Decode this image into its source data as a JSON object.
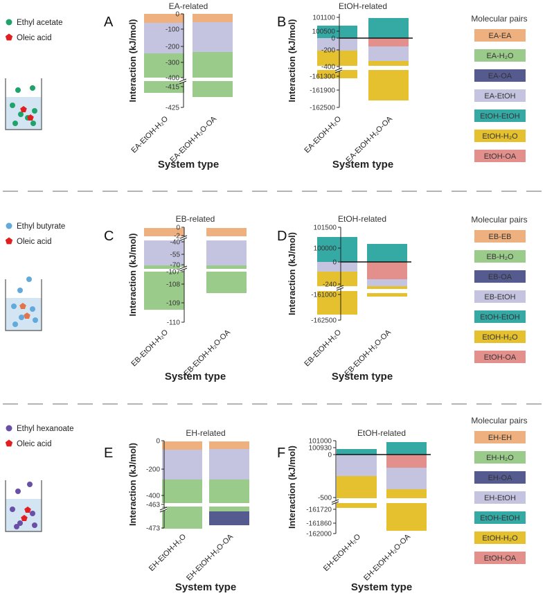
{
  "colors": {
    "EE": "#eeb07e",
    "EW": "#9bcb8b",
    "EO": "#555b8f",
    "EEt": "#c4c4e0",
    "EtEt": "#35aaa5",
    "EtW": "#e6c12f",
    "EtO": "#e38f8c"
  },
  "rows": [
    {
      "legend": [
        {
          "label": "Ethyl acetate",
          "shape": "circle",
          "color": "#1fa36b"
        },
        {
          "label": "Oleic acid",
          "shape": "pentagon",
          "color": "#e02020"
        }
      ],
      "beaker_particle_color": "#1fa36b",
      "pairs_title": "Molecular pairs",
      "pairs": [
        {
          "label": "EA-EA",
          "key": "EE"
        },
        {
          "label": "EA-H₂O",
          "key": "EW"
        },
        {
          "label": "EA-OA",
          "key": "EO"
        },
        {
          "label": "EA-EtOH",
          "key": "EEt"
        },
        {
          "label": "EtOH-EtOH",
          "key": "EtEt"
        },
        {
          "label": "EtOH-H₂O",
          "key": "EtW"
        },
        {
          "label": "EtOH-OA",
          "key": "EtO"
        }
      ]
    },
    {
      "legend": [
        {
          "label": "Ethyl butyrate",
          "shape": "circle",
          "color": "#62a9dc"
        },
        {
          "label": "Oleic acid",
          "shape": "pentagon",
          "color": "#e02020"
        }
      ],
      "beaker_particle_color": "#62a9dc",
      "pairs_title": "Molecular pairs",
      "pairs": [
        {
          "label": "EB-EB",
          "key": "EE"
        },
        {
          "label": "EB-H₂O",
          "key": "EW"
        },
        {
          "label": "EB-OA",
          "key": "EO"
        },
        {
          "label": "EB-EtOH",
          "key": "EEt"
        },
        {
          "label": "EtOH-EtOH",
          "key": "EtEt"
        },
        {
          "label": "EtOH-H₂O",
          "key": "EtW"
        },
        {
          "label": "EtOH-OA",
          "key": "EtO"
        }
      ]
    },
    {
      "legend": [
        {
          "label": "Ethyl hexanoate",
          "shape": "circle",
          "color": "#6a4fa8"
        },
        {
          "label": "Oleic acid",
          "shape": "pentagon",
          "color": "#e02020"
        }
      ],
      "beaker_particle_color": "#6a4fa8",
      "pairs_title": "Molecular pairs",
      "pairs": [
        {
          "label": "EH-EH",
          "key": "EE"
        },
        {
          "label": "EH-H₂O",
          "key": "EW"
        },
        {
          "label": "EH-OA",
          "key": "EO"
        },
        {
          "label": "EH-EtOH",
          "key": "EEt"
        },
        {
          "label": "EtOH-EtOH",
          "key": "EtEt"
        },
        {
          "label": "EtOH-H₂O",
          "key": "EtW"
        },
        {
          "label": "EtOH-OA",
          "key": "EtO"
        }
      ]
    }
  ],
  "chart_data": [
    {
      "panel": "A",
      "type": "bar",
      "stacked": true,
      "title": "EA-related",
      "ylabel": "Interaction (kJ/mol)",
      "xlabel": "System type",
      "categories": [
        "EA-EtOH-H₂O",
        "EA-EtOH-H₂O-OA"
      ],
      "axis_breaks": true,
      "y_ticks": [
        "0",
        "-100",
        "-200",
        "-300",
        "-400",
        "-415",
        "-425"
      ],
      "stacks": [
        [
          {
            "key": "EE",
            "from": 0,
            "to": -30
          },
          {
            "key": "EEt",
            "from": -30,
            "to": -250
          },
          {
            "key": "EW",
            "from": -250,
            "to": -418
          }
        ],
        [
          {
            "key": "EE",
            "from": 0,
            "to": -30
          },
          {
            "key": "EEt",
            "from": -30,
            "to": -243
          },
          {
            "key": "EW",
            "from": -243,
            "to": -420
          }
        ]
      ]
    },
    {
      "panel": "B",
      "type": "bar",
      "stacked": true,
      "title": "EtOH-related",
      "ylabel": "Interaction (kJ/mol)",
      "xlabel": "System type",
      "categories": [
        "EA-EtOH-H₂O",
        "EA-EtOH-H₂O-OA"
      ],
      "axis_breaks": true,
      "y_ticks": [
        "101100",
        "100500",
        "0",
        "-200",
        "-400",
        "-161300",
        "-161900",
        "-162500"
      ],
      "stacks": [
        [
          {
            "key": "EtEt",
            "from": 0,
            "to": 100700
          },
          {
            "key": "EEt",
            "from": 0,
            "to": -210
          },
          {
            "key": "EtW",
            "from": -210,
            "to": -161600
          }
        ],
        [
          {
            "key": "EtEt",
            "from": 0,
            "to": 101000
          },
          {
            "key": "EtO",
            "from": 0,
            "to": -150
          },
          {
            "key": "EEt",
            "from": -150,
            "to": -340
          },
          {
            "key": "EtW",
            "from": -340,
            "to": -162300
          }
        ]
      ]
    },
    {
      "panel": "C",
      "type": "bar",
      "stacked": true,
      "title": "EB-related",
      "ylabel": "Interaction (kJ/mol)",
      "xlabel": "System type",
      "categories": [
        "EB-EtOH-H₂O",
        "EB-EtOH-H₂O-OA"
      ],
      "axis_breaks": true,
      "y_ticks": [
        "0",
        "-2",
        "-40",
        "-55",
        "-70",
        "-107",
        "-108",
        "-109",
        "-110"
      ],
      "stacks": [
        [
          {
            "key": "EE",
            "from": 0,
            "to": -2
          },
          {
            "key": "EEt",
            "from": -2,
            "to": -69
          },
          {
            "key": "EW",
            "from": -69,
            "to": -109.6
          }
        ],
        [
          {
            "key": "EE",
            "from": 0,
            "to": -2
          },
          {
            "key": "EEt",
            "from": -2,
            "to": -70
          },
          {
            "key": "EW",
            "from": -70,
            "to": -108.3
          }
        ]
      ]
    },
    {
      "panel": "D",
      "type": "bar",
      "stacked": true,
      "title": "EtOH-related",
      "ylabel": "Interaction (kJ/mol)",
      "xlabel": "System type",
      "categories": [
        "EB-EtOH-H₂O",
        "EB-EtOH-H₂O-OA"
      ],
      "axis_breaks": true,
      "y_ticks": [
        "101500",
        "100000",
        "0",
        "-240",
        "-161000",
        "-162500"
      ],
      "stacks": [
        [
          {
            "key": "EtEt",
            "from": 0,
            "to": 101300
          },
          {
            "key": "EEt",
            "from": 0,
            "to": -150
          },
          {
            "key": "EtW",
            "from": -150,
            "to": -162300
          }
        ],
        [
          {
            "key": "EtEt",
            "from": 0,
            "to": 100900
          },
          {
            "key": "EtO",
            "from": 0,
            "to": -200
          },
          {
            "key": "EEt",
            "from": -200,
            "to": -260
          },
          {
            "key": "EtW",
            "from": -260,
            "to": -161200
          }
        ]
      ]
    },
    {
      "panel": "E",
      "type": "bar",
      "stacked": true,
      "title": "EH-related",
      "ylabel": "Interaction (kJ/mol)",
      "xlabel": "System type",
      "categories": [
        "EH-EtOH-H₂O",
        "EH-EtOH-H₂O-OA"
      ],
      "axis_breaks": true,
      "y_ticks": [
        "0",
        "-200",
        "-400",
        "-463",
        "-473"
      ],
      "stacks": [
        [
          {
            "key": "EE",
            "from": 0,
            "to": -30
          },
          {
            "key": "EEt",
            "from": -30,
            "to": -300
          },
          {
            "key": "EW",
            "from": -300,
            "to": -471
          }
        ],
        [
          {
            "key": "EE",
            "from": 0,
            "to": -30
          },
          {
            "key": "EEt",
            "from": -30,
            "to": -300
          },
          {
            "key": "EW",
            "from": -300,
            "to": -466.5
          },
          {
            "key": "EO",
            "from": -466.5,
            "to": -469.5
          }
        ]
      ]
    },
    {
      "panel": "F",
      "type": "bar",
      "stacked": true,
      "title": "EtOH-related",
      "ylabel": "Interaction (kJ/mol)",
      "xlabel": "System type",
      "categories": [
        "EH-EtOH-H₂O",
        "EH-EtOH-H₂O-OA"
      ],
      "axis_breaks": true,
      "y_ticks": [
        "101000",
        "100930",
        "0",
        "-500",
        "-161720",
        "-161860",
        "-162000"
      ],
      "stacks": [
        [
          {
            "key": "EtEt",
            "from": 0,
            "to": 100950
          },
          {
            "key": "EEt",
            "from": 0,
            "to": -250
          },
          {
            "key": "EtW",
            "from": -250,
            "to": -161800
          }
        ],
        [
          {
            "key": "EtEt",
            "from": 0,
            "to": 100990
          },
          {
            "key": "EtO",
            "from": 0,
            "to": -180
          },
          {
            "key": "EEt",
            "from": -180,
            "to": -410
          },
          {
            "key": "EtW",
            "from": -410,
            "to": -161980
          }
        ]
      ]
    }
  ]
}
